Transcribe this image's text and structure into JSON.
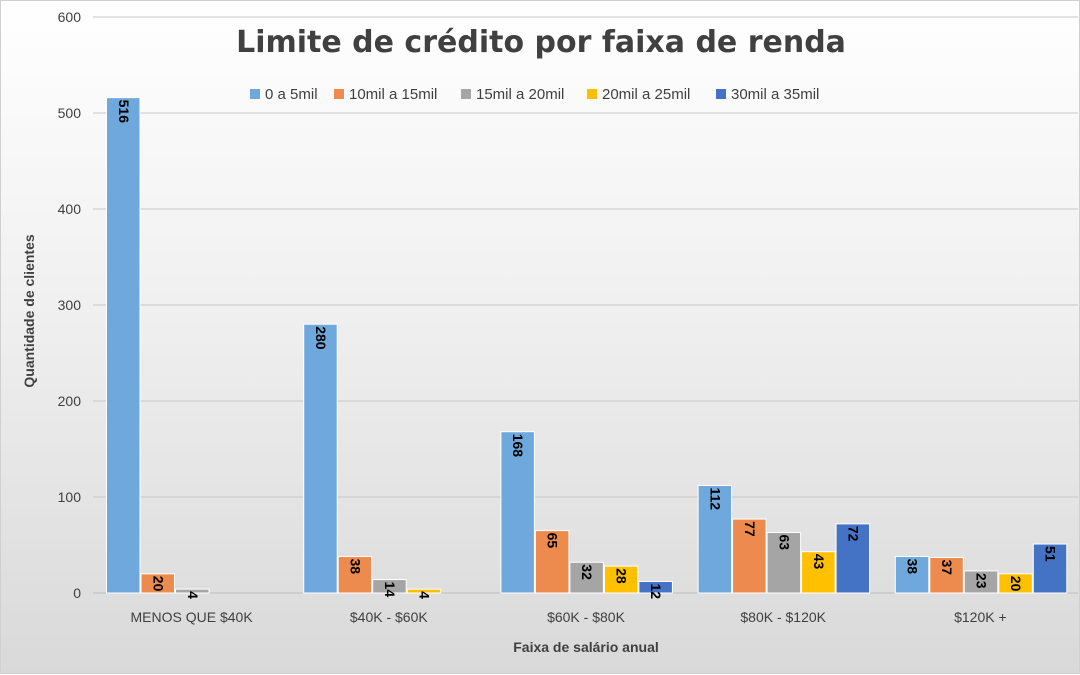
{
  "chart_data": {
    "type": "bar",
    "title": "Limite de crédito por faixa de renda",
    "xlabel": "Faixa de salário anual",
    "ylabel": "Quantidade de clientes",
    "ylim": [
      0,
      600
    ],
    "yticks": [
      0,
      100,
      200,
      300,
      400,
      500,
      600
    ],
    "grid": true,
    "legend_position": "top",
    "categories": [
      "MENOS QUE $40K",
      "$40K - $60K",
      "$60K - $80K",
      "$80K - $120K",
      "$120K +"
    ],
    "series": [
      {
        "name": "0 a 5mil",
        "color": "#6FA8DC",
        "values": [
          516,
          280,
          168,
          112,
          38
        ]
      },
      {
        "name": "10mil a 15mil",
        "color": "#ED8B4F",
        "values": [
          20,
          38,
          65,
          77,
          37
        ]
      },
      {
        "name": "15mil a 20mil",
        "color": "#A5A5A5",
        "values": [
          4,
          14,
          32,
          63,
          23
        ]
      },
      {
        "name": "20mil a 25mil",
        "color": "#FFC000",
        "values": [
          0,
          4,
          28,
          43,
          20
        ]
      },
      {
        "name": "30mil a 35mil",
        "color": "#4472C4",
        "values": [
          0,
          0,
          12,
          72,
          51
        ]
      }
    ],
    "data_labels": [
      [
        "516",
        "20",
        "4",
        "",
        ""
      ],
      [
        "280",
        "38",
        "14",
        "4",
        ""
      ],
      [
        "168",
        "65",
        "32",
        "28",
        "12"
      ],
      [
        "112",
        "77",
        "63",
        "43",
        "72"
      ],
      [
        "38",
        "37",
        "23",
        "20",
        "51"
      ]
    ]
  }
}
